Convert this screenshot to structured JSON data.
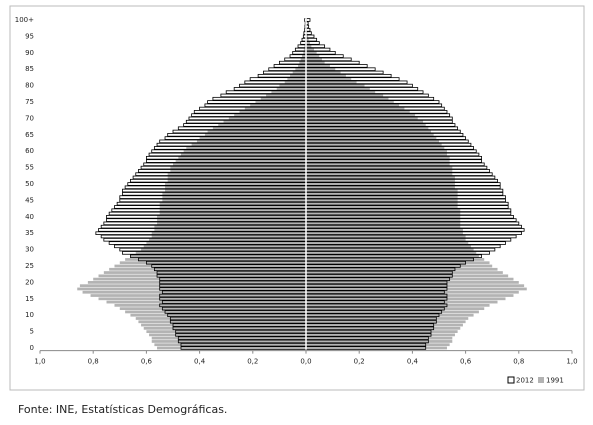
{
  "chart_data": {
    "type": "pyramid",
    "categories": [
      "0",
      null,
      null,
      null,
      null,
      "5",
      null,
      null,
      null,
      null,
      "10",
      null,
      null,
      null,
      null,
      "15",
      null,
      null,
      null,
      null,
      "20",
      null,
      null,
      null,
      null,
      "25",
      null,
      null,
      null,
      null,
      "30",
      null,
      null,
      null,
      null,
      "35",
      null,
      null,
      null,
      null,
      "40",
      null,
      null,
      null,
      null,
      "45",
      null,
      null,
      null,
      null,
      "50",
      null,
      null,
      null,
      null,
      "55",
      null,
      null,
      null,
      null,
      "60",
      null,
      null,
      null,
      null,
      "65",
      null,
      null,
      null,
      null,
      "70",
      null,
      null,
      null,
      null,
      "75",
      null,
      null,
      null,
      null,
      "80",
      null,
      null,
      null,
      null,
      "85",
      null,
      null,
      null,
      null,
      "90",
      null,
      null,
      null,
      null,
      "95",
      null,
      null,
      null,
      null,
      "100+"
    ],
    "xlim": [
      -1,
      1
    ],
    "xticks": [
      {
        "value": -1,
        "label": "1,0"
      },
      {
        "value": -0.8,
        "label": "0,8"
      },
      {
        "value": -0.6,
        "label": "0,6"
      },
      {
        "value": -0.4,
        "label": "0,4"
      },
      {
        "value": -0.2,
        "label": "0,2"
      },
      {
        "value": 0,
        "label": "0,0"
      },
      {
        "value": 0.2,
        "label": "0,2"
      },
      {
        "value": 0.4,
        "label": "0,4"
      },
      {
        "value": 0.6,
        "label": "0,6"
      },
      {
        "value": 0.8,
        "label": "0,8"
      },
      {
        "value": 1,
        "label": "1,0"
      }
    ],
    "series": [
      {
        "name": "1991",
        "color": "#b3b3b3",
        "left": [
          0.56,
          0.57,
          0.58,
          0.58,
          0.59,
          0.6,
          0.61,
          0.62,
          0.63,
          0.64,
          0.66,
          0.68,
          0.7,
          0.72,
          0.75,
          0.78,
          0.81,
          0.84,
          0.86,
          0.85,
          0.82,
          0.8,
          0.78,
          0.76,
          0.74,
          0.72,
          0.7,
          0.68,
          0.66,
          0.64,
          0.62,
          0.61,
          0.6,
          0.59,
          0.58,
          0.58,
          0.57,
          0.57,
          0.56,
          0.56,
          0.56,
          0.55,
          0.55,
          0.55,
          0.55,
          0.54,
          0.54,
          0.54,
          0.53,
          0.53,
          0.53,
          0.52,
          0.52,
          0.52,
          0.51,
          0.51,
          0.5,
          0.49,
          0.48,
          0.47,
          0.46,
          0.45,
          0.43,
          0.41,
          0.4,
          0.38,
          0.37,
          0.35,
          0.33,
          0.31,
          0.29,
          0.27,
          0.25,
          0.23,
          0.21,
          0.19,
          0.17,
          0.15,
          0.13,
          0.11,
          0.1,
          0.08,
          0.07,
          0.06,
          0.05,
          0.04,
          0.03,
          0.025,
          0.02,
          0.015,
          0.01,
          0.008,
          0.006,
          0.004,
          0.003,
          0.002,
          0.002,
          0.001,
          0.001,
          0.001,
          0.001
        ],
        "right": [
          0.53,
          0.54,
          0.55,
          0.55,
          0.56,
          0.57,
          0.58,
          0.59,
          0.6,
          0.61,
          0.63,
          0.65,
          0.67,
          0.69,
          0.72,
          0.75,
          0.78,
          0.8,
          0.83,
          0.82,
          0.8,
          0.78,
          0.76,
          0.74,
          0.72,
          0.7,
          0.69,
          0.67,
          0.65,
          0.64,
          0.63,
          0.62,
          0.61,
          0.6,
          0.6,
          0.59,
          0.59,
          0.58,
          0.58,
          0.58,
          0.58,
          0.58,
          0.58,
          0.57,
          0.57,
          0.57,
          0.57,
          0.57,
          0.57,
          0.56,
          0.56,
          0.56,
          0.56,
          0.55,
          0.55,
          0.55,
          0.54,
          0.54,
          0.54,
          0.53,
          0.53,
          0.52,
          0.51,
          0.5,
          0.49,
          0.48,
          0.47,
          0.46,
          0.45,
          0.44,
          0.42,
          0.41,
          0.39,
          0.37,
          0.35,
          0.33,
          0.31,
          0.29,
          0.26,
          0.24,
          0.22,
          0.19,
          0.17,
          0.15,
          0.13,
          0.11,
          0.09,
          0.07,
          0.06,
          0.05,
          0.04,
          0.03,
          0.02,
          0.015,
          0.01,
          0.008,
          0.005,
          0.004,
          0.003,
          0.002,
          0.004
        ]
      },
      {
        "name": "2012",
        "color": "#000000",
        "left": [
          0.47,
          0.47,
          0.48,
          0.48,
          0.49,
          0.49,
          0.5,
          0.5,
          0.51,
          0.51,
          0.52,
          0.53,
          0.54,
          0.55,
          0.54,
          0.55,
          0.55,
          0.54,
          0.55,
          0.55,
          0.55,
          0.55,
          0.56,
          0.56,
          0.57,
          0.58,
          0.6,
          0.63,
          0.66,
          0.69,
          0.7,
          0.72,
          0.74,
          0.76,
          0.77,
          0.79,
          0.78,
          0.77,
          0.76,
          0.75,
          0.75,
          0.74,
          0.73,
          0.72,
          0.71,
          0.7,
          0.7,
          0.69,
          0.69,
          0.68,
          0.67,
          0.66,
          0.65,
          0.64,
          0.63,
          0.62,
          0.61,
          0.6,
          0.6,
          0.59,
          0.58,
          0.57,
          0.56,
          0.55,
          0.53,
          0.52,
          0.5,
          0.48,
          0.46,
          0.45,
          0.44,
          0.43,
          0.42,
          0.4,
          0.38,
          0.37,
          0.35,
          0.32,
          0.3,
          0.27,
          0.25,
          0.23,
          0.21,
          0.18,
          0.16,
          0.14,
          0.12,
          0.1,
          0.08,
          0.06,
          0.05,
          0.04,
          0.03,
          0.02,
          0.015,
          0.01,
          0.008,
          0.005,
          0.004,
          0.003,
          0.005
        ],
        "right": [
          0.45,
          0.45,
          0.46,
          0.46,
          0.47,
          0.47,
          0.48,
          0.48,
          0.49,
          0.49,
          0.5,
          0.51,
          0.52,
          0.53,
          0.52,
          0.53,
          0.53,
          0.52,
          0.53,
          0.53,
          0.53,
          0.54,
          0.55,
          0.55,
          0.56,
          0.58,
          0.6,
          0.63,
          0.66,
          0.69,
          0.71,
          0.73,
          0.75,
          0.77,
          0.79,
          0.81,
          0.82,
          0.81,
          0.8,
          0.79,
          0.78,
          0.77,
          0.77,
          0.76,
          0.76,
          0.75,
          0.75,
          0.74,
          0.74,
          0.73,
          0.73,
          0.72,
          0.71,
          0.7,
          0.69,
          0.68,
          0.67,
          0.66,
          0.66,
          0.65,
          0.64,
          0.63,
          0.62,
          0.61,
          0.6,
          0.59,
          0.58,
          0.57,
          0.56,
          0.55,
          0.55,
          0.54,
          0.53,
          0.52,
          0.51,
          0.5,
          0.48,
          0.46,
          0.44,
          0.42,
          0.4,
          0.38,
          0.35,
          0.32,
          0.29,
          0.26,
          0.23,
          0.2,
          0.17,
          0.14,
          0.11,
          0.09,
          0.07,
          0.05,
          0.04,
          0.03,
          0.02,
          0.015,
          0.01,
          0.008,
          0.015
        ]
      }
    ],
    "legend": "bottom-right",
    "source": "Fonte: INE, Estatísticas Demográficas."
  }
}
